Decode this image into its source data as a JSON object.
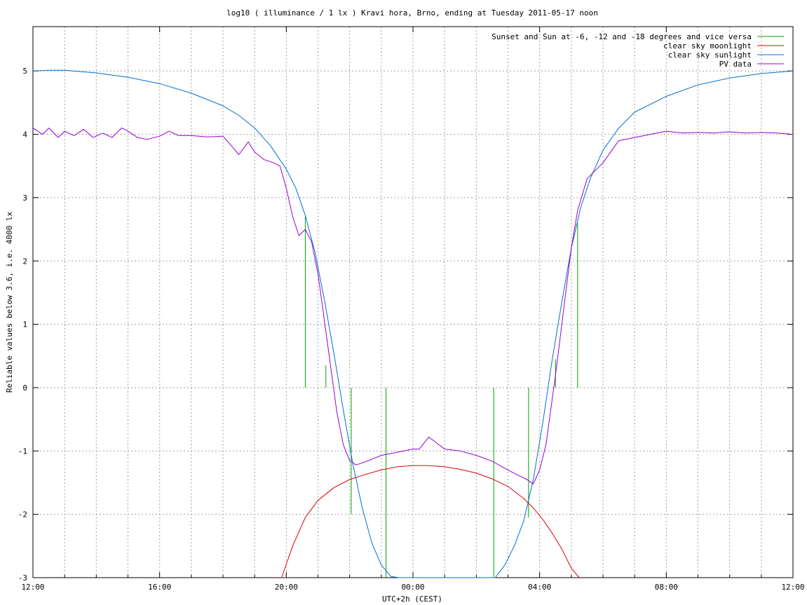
{
  "chart_data": {
    "type": "line",
    "title": "log10 ( illuminance / 1 lx ) Kravi hora, Brno, ending at Tuesday 2011-05-17 noon",
    "xlabel": "UTC+2h (CEST)",
    "ylabel": "Reliable values below 3.6, i.e. 4000 lx",
    "x_unit": "hours since 12:00 (local)",
    "xlim": [
      0,
      24
    ],
    "ylim": [
      -3,
      5.7
    ],
    "x_ticks": [
      {
        "x": 0,
        "label": "12:00"
      },
      {
        "x": 4,
        "label": "16:00"
      },
      {
        "x": 8,
        "label": "20:00"
      },
      {
        "x": 12,
        "label": "00:00"
      },
      {
        "x": 16,
        "label": "04:00"
      },
      {
        "x": 20,
        "label": "08:00"
      },
      {
        "x": 24,
        "label": "12:00"
      }
    ],
    "y_ticks": [
      {
        "y": 5,
        "label": "5"
      },
      {
        "y": 4,
        "label": "4"
      },
      {
        "y": 3,
        "label": "3"
      },
      {
        "y": 2,
        "label": "2"
      },
      {
        "y": 1,
        "label": "1"
      },
      {
        "y": 0,
        "label": "0"
      },
      {
        "y": -1,
        "label": "-1"
      },
      {
        "y": -2,
        "label": "-2"
      },
      {
        "y": -3,
        "label": "-3"
      }
    ],
    "grid": true,
    "legend_position": "top-right",
    "series": [
      {
        "name": "Sunset and Sun at -6, -12 and -18 degrees and vice versa",
        "color": "#00a000",
        "kind": "vlines",
        "lines": [
          {
            "x": 8.6,
            "y0": 0,
            "y1": 2.7
          },
          {
            "x": 9.25,
            "y0": 0,
            "y1": 0.35
          },
          {
            "x": 10.05,
            "y0": 0,
            "y1": -2.0
          },
          {
            "x": 11.15,
            "y0": 0,
            "y1": -3.0
          },
          {
            "x": 14.55,
            "y0": 0,
            "y1": -3.0
          },
          {
            "x": 15.65,
            "y0": 0,
            "y1": -2.05
          },
          {
            "x": 16.5,
            "y0": 0,
            "y1": 0.45
          },
          {
            "x": 17.2,
            "y0": 0,
            "y1": 2.6
          }
        ]
      },
      {
        "name": "clear sky moonlight",
        "color": "#e00000",
        "x": [
          7.85,
          8.2,
          8.6,
          9.0,
          9.5,
          10.0,
          10.5,
          11.0,
          11.5,
          12.0,
          12.5,
          13.0,
          13.5,
          14.0,
          14.5,
          15.0,
          15.5,
          15.8,
          16.1,
          16.4,
          16.7,
          17.0,
          17.25
        ],
        "y": [
          -3.0,
          -2.5,
          -2.05,
          -1.78,
          -1.58,
          -1.45,
          -1.37,
          -1.3,
          -1.25,
          -1.23,
          -1.23,
          -1.25,
          -1.29,
          -1.35,
          -1.44,
          -1.56,
          -1.75,
          -1.9,
          -2.08,
          -2.3,
          -2.55,
          -2.85,
          -3.0
        ]
      },
      {
        "name": "clear sky sunlight",
        "color": "#0070d0",
        "x": [
          0,
          0.5,
          1.0,
          2.0,
          3.0,
          4.0,
          5.0,
          6.0,
          6.5,
          7.0,
          7.5,
          8.0,
          8.3,
          8.6,
          8.9,
          9.2,
          9.5,
          9.8,
          10.1,
          10.4,
          10.7,
          11.0,
          11.3,
          11.55,
          14.6,
          14.9,
          15.2,
          15.5,
          15.8,
          16.1,
          16.4,
          16.7,
          17.0,
          17.3,
          17.6,
          18.0,
          18.5,
          19.0,
          20.0,
          21.0,
          22.0,
          23.0,
          24.0
        ],
        "y": [
          5.0,
          5.01,
          5.01,
          4.97,
          4.9,
          4.8,
          4.65,
          4.45,
          4.3,
          4.1,
          3.82,
          3.45,
          3.15,
          2.72,
          2.15,
          1.4,
          0.55,
          -0.35,
          -1.2,
          -1.9,
          -2.45,
          -2.8,
          -2.98,
          -3.0,
          -3.0,
          -2.8,
          -2.5,
          -2.1,
          -1.45,
          -0.55,
          0.45,
          1.35,
          2.2,
          2.85,
          3.3,
          3.75,
          4.1,
          4.35,
          4.6,
          4.78,
          4.89,
          4.96,
          5.0
        ]
      },
      {
        "name": "PV data",
        "color": "#9400d3",
        "x": [
          0,
          0.3,
          0.5,
          0.8,
          1.0,
          1.3,
          1.6,
          1.9,
          2.2,
          2.5,
          2.8,
          3.0,
          3.3,
          3.6,
          4.0,
          4.3,
          4.6,
          5.0,
          5.5,
          6.0,
          6.3,
          6.5,
          6.8,
          7.0,
          7.3,
          7.6,
          7.8,
          8.0,
          8.2,
          8.4,
          8.6,
          8.8,
          9.0,
          9.3,
          9.6,
          9.8,
          10.0,
          10.2,
          10.5,
          11.0,
          11.5,
          12.0,
          12.2,
          12.5,
          13.0,
          13.5,
          14.0,
          14.5,
          15.0,
          15.3,
          15.6,
          15.8,
          16.0,
          16.2,
          16.5,
          16.8,
          17.0,
          17.2,
          17.5,
          17.8,
          18.0,
          18.5,
          19.0,
          19.5,
          20.0,
          20.5,
          21.0,
          21.5,
          22.0,
          22.5,
          23.0,
          23.5,
          24.0
        ],
        "y": [
          4.1,
          4.0,
          4.1,
          3.95,
          4.05,
          3.98,
          4.08,
          3.95,
          4.02,
          3.95,
          4.1,
          4.05,
          3.95,
          3.92,
          3.97,
          4.05,
          3.98,
          3.98,
          3.96,
          3.97,
          3.8,
          3.68,
          3.88,
          3.72,
          3.6,
          3.55,
          3.5,
          3.15,
          2.7,
          2.4,
          2.5,
          2.3,
          1.8,
          0.7,
          -0.4,
          -0.9,
          -1.15,
          -1.22,
          -1.17,
          -1.07,
          -1.02,
          -0.97,
          -0.97,
          -0.78,
          -0.97,
          -1.0,
          -1.07,
          -1.16,
          -1.3,
          -1.38,
          -1.45,
          -1.52,
          -1.3,
          -0.9,
          0.2,
          1.4,
          2.2,
          2.8,
          3.3,
          3.45,
          3.55,
          3.9,
          3.95,
          4.0,
          4.05,
          4.02,
          4.03,
          4.02,
          4.04,
          4.02,
          4.03,
          4.02,
          4.0
        ]
      }
    ]
  }
}
